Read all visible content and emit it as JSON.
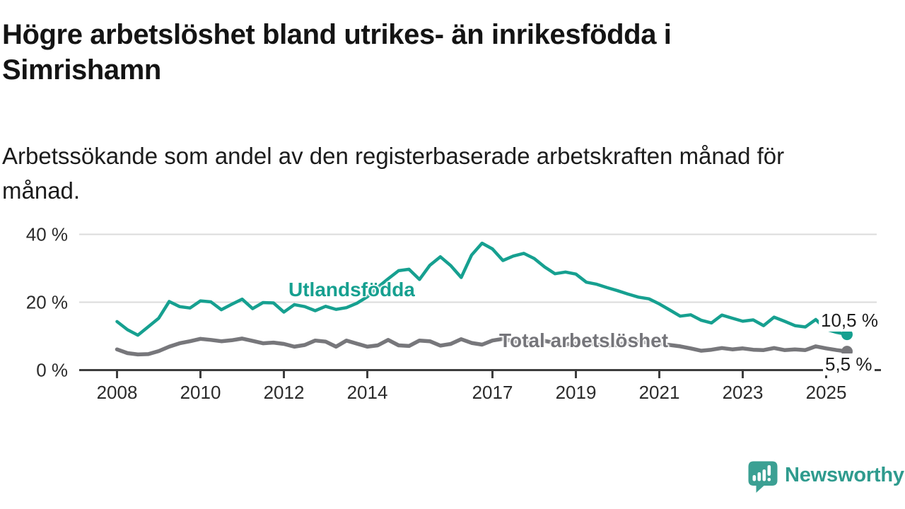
{
  "header": {
    "title": "Högre arbetslöshet bland utrikes- än inrikesfödda i\nSimrishamn",
    "subtitle": "Arbetssökande som andel av den registerbaserade arbetskraften månad för\nmånad."
  },
  "chart_data": {
    "type": "line",
    "title": "Högre arbetslöshet bland utrikes- än inrikesfödda i Simrishamn",
    "subtitle": "Arbetssökande som andel av den registerbaserade arbetskraften månad för månad.",
    "unit": "%",
    "grid": "horizontal-only",
    "legend": "inline-labels",
    "ylim": [
      0,
      44
    ],
    "xlim": [
      2008,
      2025.75
    ],
    "y_ticks": [
      {
        "value": 0,
        "label": "0 %"
      },
      {
        "value": 20,
        "label": "20 %"
      },
      {
        "value": 40,
        "label": "40 %"
      }
    ],
    "x_ticks": [
      {
        "year": 2008,
        "label": "2008"
      },
      {
        "year": 2010,
        "label": "2010"
      },
      {
        "year": 2012,
        "label": "2012"
      },
      {
        "year": 2014,
        "label": "2014"
      },
      {
        "year": 2017,
        "label": "2017"
      },
      {
        "year": 2019,
        "label": "2019"
      },
      {
        "year": 2021,
        "label": "2021"
      },
      {
        "year": 2023,
        "label": "2023"
      },
      {
        "year": 2025,
        "label": "2025"
      }
    ],
    "x": [
      2008.0,
      2008.25,
      2008.5,
      2008.75,
      2009.0,
      2009.25,
      2009.5,
      2009.75,
      2010.0,
      2010.25,
      2010.5,
      2010.75,
      2011.0,
      2011.25,
      2011.5,
      2011.75,
      2012.0,
      2012.25,
      2012.5,
      2012.75,
      2013.0,
      2013.25,
      2013.5,
      2013.75,
      2014.0,
      2014.25,
      2014.5,
      2014.75,
      2015.0,
      2015.25,
      2015.5,
      2015.75,
      2016.0,
      2016.25,
      2016.5,
      2016.75,
      2017.0,
      2017.25,
      2017.5,
      2017.75,
      2018.0,
      2018.25,
      2018.5,
      2018.75,
      2019.0,
      2019.25,
      2019.5,
      2019.75,
      2020.0,
      2020.25,
      2020.5,
      2020.75,
      2021.0,
      2021.25,
      2021.5,
      2021.75,
      2022.0,
      2022.25,
      2022.5,
      2022.75,
      2023.0,
      2023.25,
      2023.5,
      2023.75,
      2024.0,
      2024.25,
      2024.5,
      2024.75,
      2025.0,
      2025.25,
      2025.5
    ],
    "series": [
      {
        "name": "Utlandsfödda",
        "color": "#16a090",
        "end_label": "10,5 %",
        "end_value": 10.5,
        "values": [
          14.3,
          11.9,
          10.3,
          12.8,
          15.3,
          20.2,
          18.7,
          18.3,
          20.4,
          20.1,
          17.8,
          19.4,
          20.9,
          18.1,
          19.9,
          19.8,
          17.1,
          19.3,
          18.7,
          17.5,
          18.8,
          17.9,
          18.4,
          19.7,
          21.6,
          24.4,
          26.9,
          29.3,
          29.7,
          26.7,
          30.9,
          33.4,
          30.8,
          27.3,
          33.9,
          37.4,
          35.7,
          32.3,
          33.6,
          34.4,
          32.9,
          30.4,
          28.4,
          28.9,
          28.3,
          25.9,
          25.3,
          24.3,
          23.4,
          22.4,
          21.5,
          21.0,
          19.5,
          17.7,
          15.9,
          16.3,
          14.7,
          13.9,
          16.2,
          15.3,
          14.4,
          14.8,
          13.1,
          15.6,
          14.4,
          13.1,
          12.7,
          14.9,
          12.0,
          11.1,
          10.5
        ]
      },
      {
        "name": "Total arbetslöshet",
        "color": "#77777b",
        "end_label": "5,5 %",
        "end_value": 5.5,
        "values": [
          6.1,
          5.0,
          4.6,
          4.7,
          5.6,
          6.9,
          7.9,
          8.5,
          9.2,
          8.9,
          8.5,
          8.8,
          9.3,
          8.6,
          7.9,
          8.1,
          7.7,
          6.9,
          7.4,
          8.7,
          8.4,
          6.9,
          8.7,
          7.8,
          6.9,
          7.3,
          8.9,
          7.3,
          7.1,
          8.7,
          8.5,
          7.2,
          7.7,
          9.1,
          8.0,
          7.5,
          8.7,
          9.2,
          8.5,
          8.0,
          8.3,
          8.6,
          8.0,
          7.6,
          7.8,
          8.0,
          7.5,
          7.2,
          7.4,
          8.3,
          8.5,
          8.0,
          7.8,
          7.4,
          7.0,
          6.4,
          5.7,
          6.0,
          6.5,
          6.1,
          6.4,
          6.0,
          5.9,
          6.5,
          5.9,
          6.1,
          5.9,
          7.0,
          6.4,
          5.9,
          5.5
        ]
      }
    ],
    "style": {
      "grid_color": "#dbdbdb",
      "axis_color": "#3d3d3d",
      "tick_label_color": "#2b2b2b"
    }
  },
  "footer": {
    "brand": "Newsworthy",
    "logo_colors": {
      "bubble": "#3ba093",
      "text": "#2f9b8e"
    }
  }
}
